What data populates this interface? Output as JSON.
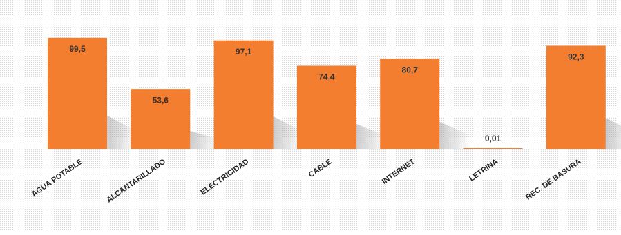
{
  "chart_data": {
    "type": "bar",
    "categories": [
      "AGUA POTABLE",
      "ALCANTARILLADO",
      "ELECTRICIDAD",
      "CABLE",
      "INTERNET",
      "LETRINA",
      "REC. DE BASURA"
    ],
    "values": [
      99.5,
      53.6,
      97.1,
      74.4,
      80.7,
      0.01,
      92.3
    ],
    "value_labels": [
      "99,5",
      "53,6",
      "97,1",
      "74,4",
      "80,7",
      "0,01",
      "92,3"
    ],
    "color": "#f47e30"
  }
}
